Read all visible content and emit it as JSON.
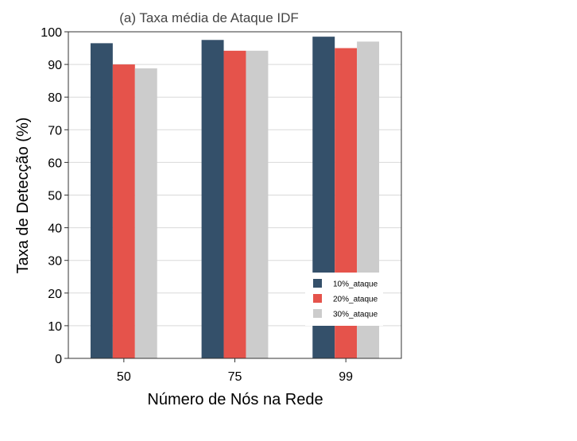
{
  "chart_data": {
    "type": "bar",
    "title": "(a) Taxa média de Ataque IDF",
    "xlabel": "Número de Nós na Rede",
    "ylabel": "Taxa de Detecção (%)",
    "categories": [
      "50",
      "75",
      "99"
    ],
    "ylim": [
      0,
      100
    ],
    "yticks": [
      0,
      10,
      20,
      30,
      40,
      50,
      60,
      70,
      80,
      90,
      100
    ],
    "grid": true,
    "legend_position": "lower-right",
    "series": [
      {
        "name": "10%_ataque",
        "color": "#34506a",
        "values": [
          96.5,
          97.5,
          98.5
        ]
      },
      {
        "name": "20%_ataque",
        "color": "#e5534b",
        "values": [
          90,
          94.2,
          95
        ]
      },
      {
        "name": "30%_ataque",
        "color": "#cccccc",
        "values": [
          88.8,
          94.2,
          97
        ]
      }
    ]
  }
}
